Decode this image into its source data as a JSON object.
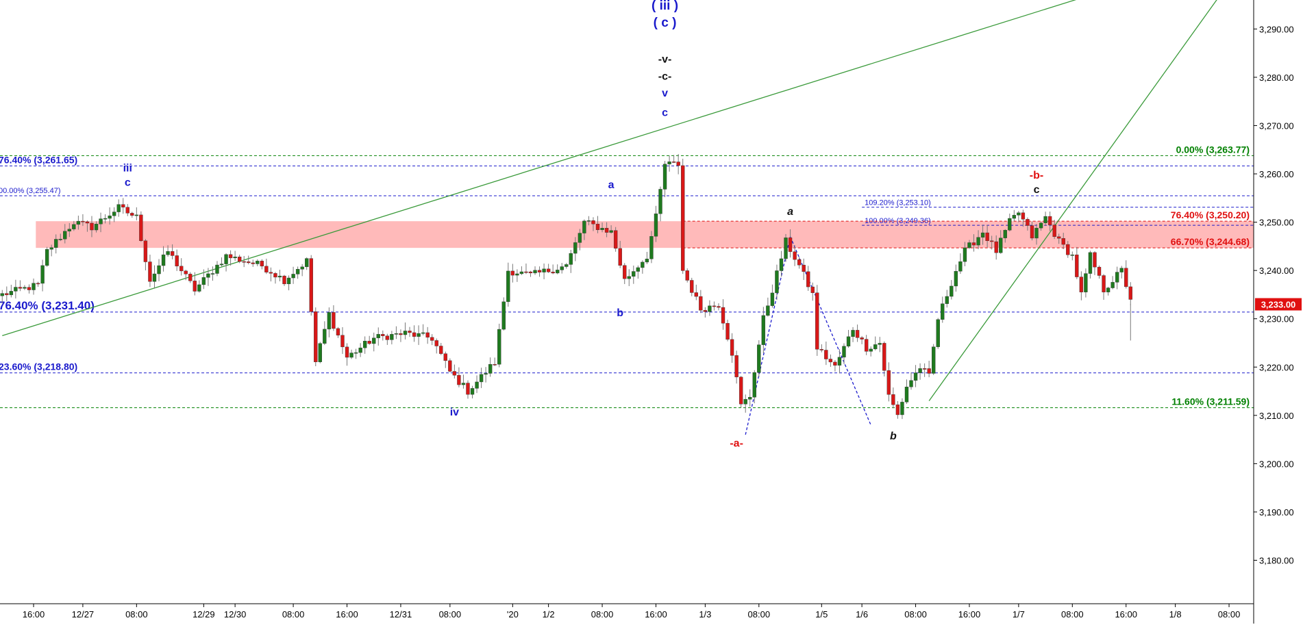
{
  "chart_data": {
    "type": "candlestick",
    "instrument_last_price": "3,233.00",
    "y_axis": {
      "range": [
        3171,
        3296
      ],
      "ticks": [
        3180,
        3190,
        3200,
        3210,
        3220,
        3230,
        3240,
        3250,
        3260,
        3270,
        3280,
        3290
      ],
      "tick_labels": [
        "3,180.00",
        "3,190.00",
        "3,200.00",
        "3,210.00",
        "3,220.00",
        "3,230.00",
        "3,240.00",
        "3,250.00",
        "3,260.00",
        "3,270.00",
        "3,280.00",
        "3,290.00"
      ],
      "side": "right"
    },
    "x_axis": {
      "bar_count": 280,
      "ticks": [
        {
          "bar": 7,
          "label": "16:00"
        },
        {
          "bar": 18,
          "label": "12/27"
        },
        {
          "bar": 30,
          "label": "08:00"
        },
        {
          "bar": 45,
          "label": "12/29"
        },
        {
          "bar": 52,
          "label": "12/30"
        },
        {
          "bar": 65,
          "label": "08:00"
        },
        {
          "bar": 77,
          "label": "16:00"
        },
        {
          "bar": 89,
          "label": "12/31"
        },
        {
          "bar": 100,
          "label": "08:00"
        },
        {
          "bar": 114,
          "label": "'20"
        },
        {
          "bar": 122,
          "label": "1/2"
        },
        {
          "bar": 134,
          "label": "08:00"
        },
        {
          "bar": 146,
          "label": "16:00"
        },
        {
          "bar": 157,
          "label": "1/3"
        },
        {
          "bar": 169,
          "label": "08:00"
        },
        {
          "bar": 183,
          "label": "1/5"
        },
        {
          "bar": 192,
          "label": "1/6"
        },
        {
          "bar": 204,
          "label": "08:00"
        },
        {
          "bar": 216,
          "label": "16:00"
        },
        {
          "bar": 227,
          "label": "1/7"
        },
        {
          "bar": 239,
          "label": "08:00"
        },
        {
          "bar": 251,
          "label": "16:00"
        },
        {
          "bar": 262,
          "label": "1/8"
        },
        {
          "bar": 274,
          "label": "08:00"
        }
      ]
    },
    "pivots": [
      [
        0,
        3235
      ],
      [
        8,
        3237
      ],
      [
        10,
        3244
      ],
      [
        16,
        3250
      ],
      [
        20,
        3249
      ],
      [
        26,
        3253
      ],
      [
        30,
        3251
      ],
      [
        33,
        3238
      ],
      [
        37,
        3244
      ],
      [
        43,
        3236
      ],
      [
        50,
        3243
      ],
      [
        58,
        3241
      ],
      [
        63,
        3238
      ],
      [
        68,
        3242
      ],
      [
        70,
        3221
      ],
      [
        73,
        3231
      ],
      [
        77,
        3222
      ],
      [
        83,
        3226
      ],
      [
        90,
        3227
      ],
      [
        96,
        3226
      ],
      [
        100,
        3219
      ],
      [
        104,
        3215
      ],
      [
        110,
        3221
      ],
      [
        113,
        3240
      ],
      [
        118,
        3239
      ],
      [
        126,
        3241
      ],
      [
        130,
        3250
      ],
      [
        136,
        3248
      ],
      [
        139,
        3238
      ],
      [
        144,
        3243
      ],
      [
        146,
        3251
      ],
      [
        148,
        3262
      ],
      [
        151,
        3262
      ],
      [
        152,
        3240
      ],
      [
        156,
        3232
      ],
      [
        160,
        3233
      ],
      [
        163,
        3223
      ],
      [
        165,
        3212
      ],
      [
        167,
        3214
      ],
      [
        170,
        3230
      ],
      [
        172,
        3236
      ],
      [
        175,
        3246
      ],
      [
        178,
        3241
      ],
      [
        181,
        3235
      ],
      [
        182,
        3224
      ],
      [
        186,
        3220
      ],
      [
        190,
        3228
      ],
      [
        193,
        3224
      ],
      [
        196,
        3225
      ],
      [
        198,
        3214
      ],
      [
        200,
        3210
      ],
      [
        202,
        3216
      ],
      [
        205,
        3220
      ],
      [
        207,
        3218
      ],
      [
        209,
        3230
      ],
      [
        213,
        3240
      ],
      [
        215,
        3244
      ],
      [
        219,
        3248
      ],
      [
        222,
        3244
      ],
      [
        225,
        3250
      ],
      [
        227,
        3252
      ],
      [
        230,
        3247
      ],
      [
        233,
        3251
      ],
      [
        236,
        3246
      ],
      [
        239,
        3243
      ],
      [
        241,
        3235
      ],
      [
        243,
        3243
      ],
      [
        246,
        3236
      ],
      [
        250,
        3240
      ],
      [
        252,
        3234
      ]
    ],
    "fib_levels": [
      {
        "label": "0.00% (3,263.77)",
        "value": 3263.77,
        "color": "#008000",
        "style": "dashed",
        "from_bar": 0,
        "label_side": "right"
      },
      {
        "label": "11.60% (3,211.59)",
        "value": 3211.59,
        "color": "#008000",
        "style": "dashed",
        "from_bar": 0,
        "label_side": "right"
      },
      {
        "label": "76.40% (3,261.65)",
        "value": 3261.65,
        "color": "#1a1acc",
        "style": "dashed",
        "from_bar": 0,
        "label_side": "left"
      },
      {
        "label": "00.00% (3,255.47)",
        "value": 3255.47,
        "color": "#1a1acc",
        "style": "dashed",
        "from_bar": 0,
        "label_side": "left"
      },
      {
        "label": "76.40% (3,231.40)",
        "value": 3231.4,
        "color": "#1a1acc",
        "style": "dashed",
        "from_bar": 0,
        "label_side": "left"
      },
      {
        "label": "23.60% (3,218.80)",
        "value": 3218.8,
        "color": "#1a1acc",
        "style": "dashed",
        "from_bar": 0,
        "label_side": "left"
      },
      {
        "label": "109.20% (3,253.10)",
        "value": 3253.1,
        "color": "#1a1acc",
        "style": "dashed",
        "from_bar": 192,
        "label_side": "inline"
      },
      {
        "label": "100.00% (3,249.36)",
        "value": 3249.36,
        "color": "#1a1acc",
        "style": "dashed",
        "from_bar": 192,
        "label_side": "inline"
      },
      {
        "label": "76.40% (3,250.20)",
        "value": 3250.2,
        "color": "#e01010",
        "style": "dashed",
        "from_bar": 152,
        "label_side": "right"
      },
      {
        "label": "66.70% (3,244.68)",
        "value": 3244.68,
        "color": "#e01010",
        "style": "dashed",
        "from_bar": 152,
        "label_side": "right"
      }
    ],
    "resistance_zone": {
      "from_bar": 8,
      "low": 3244.68,
      "high": 3250.2,
      "color": "#ffb3b3"
    },
    "wave_labels": [
      {
        "text": "( iii )",
        "bar": 148,
        "value": 3294,
        "color": "#1a1acc"
      },
      {
        "text": "( c )",
        "bar": 148,
        "value": 3290.5,
        "color": "#1a1acc"
      },
      {
        "text": "-v-",
        "bar": 148,
        "value": 3283,
        "color": "#111111"
      },
      {
        "text": "-c-",
        "bar": 148,
        "value": 3279.5,
        "color": "#111111"
      },
      {
        "text": "v",
        "bar": 148,
        "value": 3276,
        "color": "#1a1acc"
      },
      {
        "text": "c",
        "bar": 148,
        "value": 3272,
        "color": "#1a1acc"
      },
      {
        "text": "iii",
        "bar": 28,
        "value": 3260.5,
        "color": "#1a1acc"
      },
      {
        "text": "c",
        "bar": 28,
        "value": 3257.5,
        "color": "#1a1acc"
      },
      {
        "text": "a",
        "bar": 136,
        "value": 3257,
        "color": "#1a1acc"
      },
      {
        "text": "b",
        "bar": 138,
        "value": 3230.5,
        "color": "#1a1acc"
      },
      {
        "text": "iv",
        "bar": 101,
        "value": 3210,
        "color": "#1a1acc"
      },
      {
        "text": "-a-",
        "bar": 164,
        "value": 3203.5,
        "color": "#e01010"
      },
      {
        "text": "a",
        "bar": 176,
        "value": 3251.5,
        "color": "#111111",
        "italic": true
      },
      {
        "text": "b",
        "bar": 199,
        "value": 3205,
        "color": "#111111",
        "italic": true
      },
      {
        "text": "-b-",
        "bar": 231,
        "value": 3259,
        "color": "#e01010"
      },
      {
        "text": "c",
        "bar": 231,
        "value": 3256,
        "color": "#111111"
      }
    ],
    "trend_lines": [
      {
        "from": [
          0,
          3226.5
        ],
        "to": [
          243,
          3297
        ],
        "color": "#3a9a3a",
        "style": "solid"
      },
      {
        "from": [
          207,
          3213
        ],
        "to": [
          272,
          3297
        ],
        "color": "#3a9a3a",
        "style": "solid"
      },
      {
        "from": [
          166,
          3206
        ],
        "to": [
          176,
          3247
        ],
        "color": "#1a1acc",
        "style": "dashed"
      },
      {
        "from": [
          176,
          3247
        ],
        "to": [
          194,
          3208
        ],
        "color": "#1a1acc",
        "style": "dashed"
      }
    ]
  }
}
